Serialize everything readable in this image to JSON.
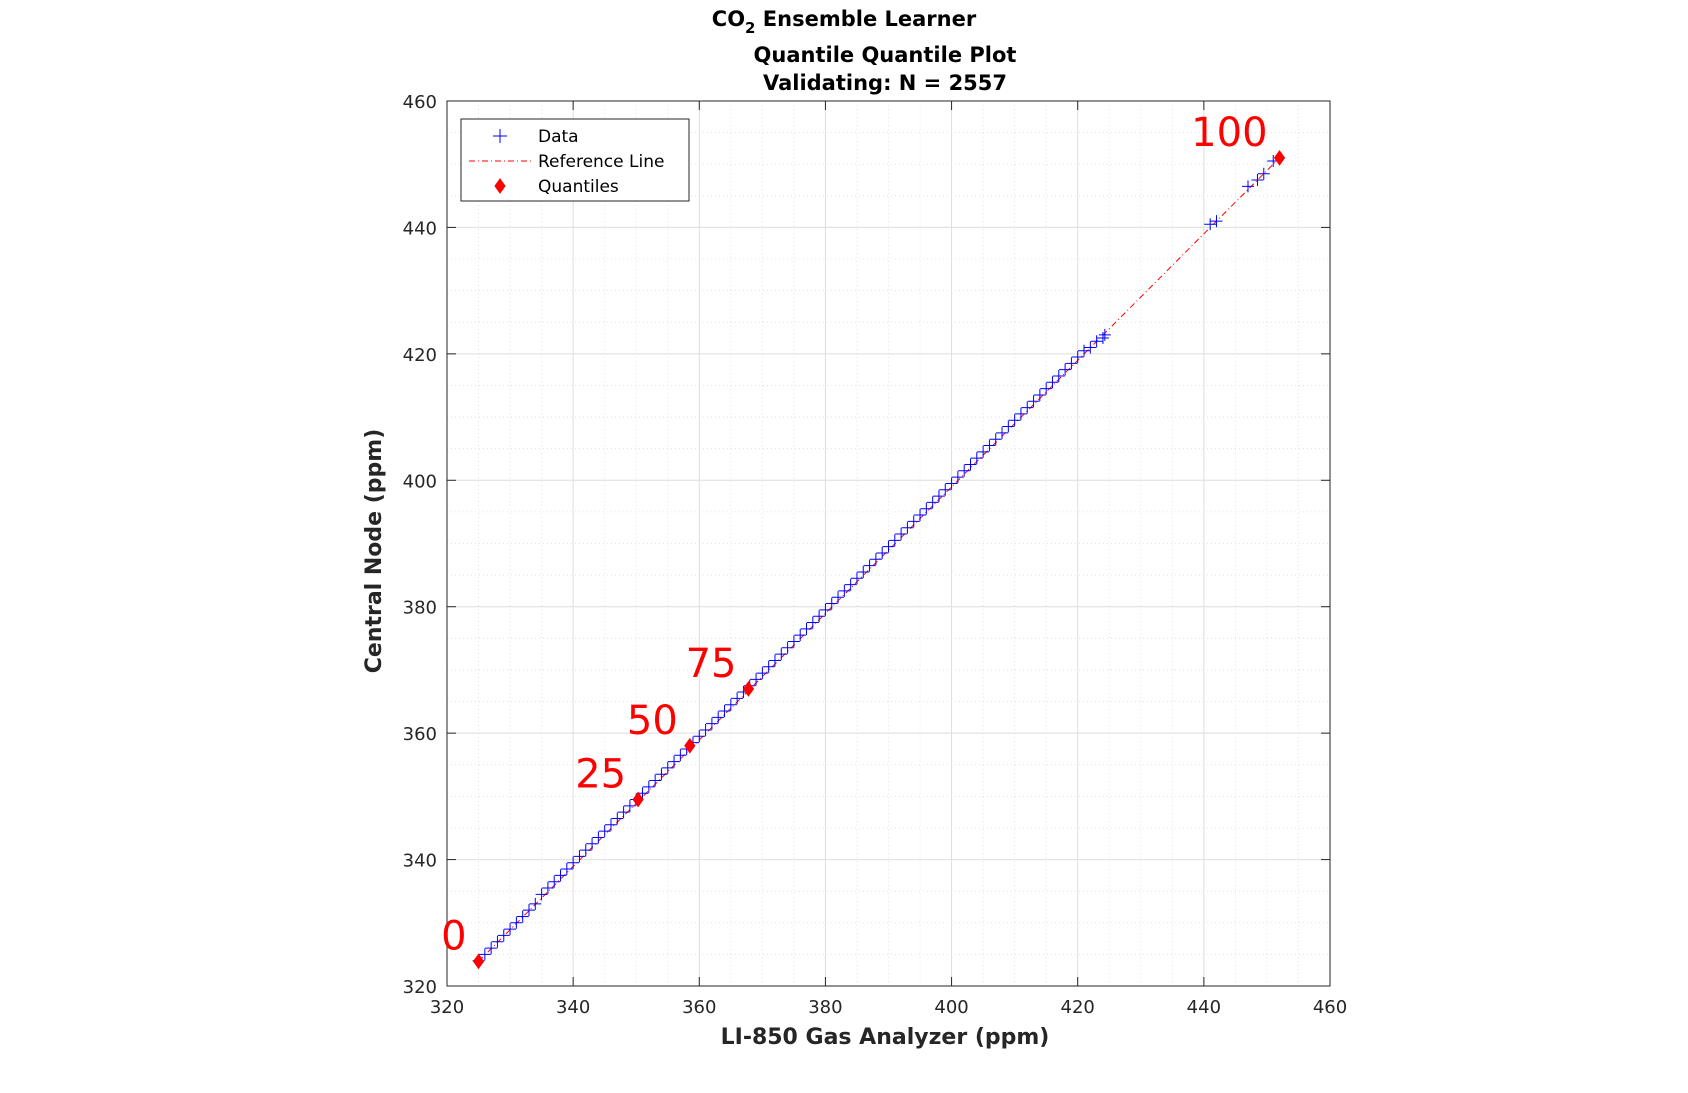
{
  "chart_data": {
    "type": "scatter",
    "title": {
      "line1_main": "CO",
      "line1_subscript": "2",
      "line1_rest": " Ensemble Learner",
      "line2": "Quantile Quantile Plot",
      "line3": "Validating: N = 2557"
    },
    "xlabel": "LI-850 Gas Analyzer (ppm)",
    "ylabel": "Central Node (ppm)",
    "xlim": [
      320,
      460
    ],
    "ylim": [
      320,
      460
    ],
    "x_ticks": [
      "320",
      "340",
      "360",
      "380",
      "400",
      "420",
      "440",
      "460"
    ],
    "y_ticks": [
      "320",
      "340",
      "360",
      "380",
      "400",
      "420",
      "440",
      "460"
    ],
    "grid": true,
    "minor_grid": true,
    "legend": {
      "placement": "top-left",
      "entries": [
        {
          "label": "Data",
          "marker": "plus",
          "color": "#0000ff"
        },
        {
          "label": "Reference Line",
          "marker": "dash-dot",
          "color": "#ff0000"
        },
        {
          "label": "Quantiles",
          "marker": "diamond",
          "color": "#ff0000"
        }
      ]
    },
    "series": [
      {
        "name": "Data",
        "marker": "plus",
        "color": "#0000ff",
        "points": [
          [
            325,
            324
          ],
          [
            326,
            325
          ],
          [
            327,
            326
          ],
          [
            328,
            327
          ],
          [
            329,
            328
          ],
          [
            330,
            329
          ],
          [
            331,
            330
          ],
          [
            332,
            331
          ],
          [
            333,
            332
          ],
          [
            334,
            333
          ],
          [
            335,
            334.5
          ],
          [
            336,
            335.5
          ],
          [
            337,
            336.5
          ],
          [
            338,
            337.5
          ],
          [
            339,
            338.5
          ],
          [
            340,
            339.5
          ],
          [
            341,
            340.5
          ],
          [
            342,
            341.5
          ],
          [
            343,
            342.5
          ],
          [
            344,
            343.5
          ],
          [
            345,
            344.5
          ],
          [
            346,
            345.5
          ],
          [
            347,
            346.5
          ],
          [
            348,
            347.5
          ],
          [
            349,
            348.5
          ],
          [
            350,
            349.5
          ],
          [
            351,
            350.5
          ],
          [
            352,
            351.5
          ],
          [
            353,
            352.5
          ],
          [
            354,
            353.5
          ],
          [
            355,
            354.5
          ],
          [
            356,
            355.5
          ],
          [
            357,
            356.5
          ],
          [
            358,
            357.5
          ],
          [
            359,
            358.5
          ],
          [
            360,
            359.5
          ],
          [
            361,
            360.5
          ],
          [
            362,
            361.5
          ],
          [
            363,
            362.5
          ],
          [
            364,
            363.5
          ],
          [
            365,
            364.5
          ],
          [
            366,
            365.5
          ],
          [
            367,
            366.5
          ],
          [
            368,
            367.5
          ],
          [
            369,
            368.5
          ],
          [
            370,
            369.5
          ],
          [
            371,
            370.5
          ],
          [
            372,
            371.5
          ],
          [
            373,
            372.5
          ],
          [
            374,
            373.5
          ],
          [
            375,
            374.5
          ],
          [
            376,
            375.5
          ],
          [
            377,
            376.5
          ],
          [
            378,
            377.5
          ],
          [
            379,
            378.5
          ],
          [
            380,
            379.5
          ],
          [
            381,
            380.5
          ],
          [
            382,
            381.5
          ],
          [
            383,
            382.5
          ],
          [
            384,
            383.5
          ],
          [
            385,
            384.5
          ],
          [
            386,
            385.5
          ],
          [
            387,
            386.5
          ],
          [
            388,
            387.5
          ],
          [
            389,
            388.5
          ],
          [
            390,
            389.5
          ],
          [
            391,
            390.5
          ],
          [
            392,
            391.5
          ],
          [
            393,
            392.5
          ],
          [
            394,
            393.5
          ],
          [
            395,
            394.5
          ],
          [
            396,
            395.5
          ],
          [
            397,
            396.5
          ],
          [
            398,
            397.5
          ],
          [
            399,
            398.5
          ],
          [
            400,
            399.5
          ],
          [
            401,
            400.5
          ],
          [
            402,
            401.5
          ],
          [
            403,
            402.5
          ],
          [
            404,
            403.5
          ],
          [
            405,
            404.5
          ],
          [
            406,
            405.5
          ],
          [
            407,
            406.5
          ],
          [
            408,
            407.5
          ],
          [
            409,
            408.5
          ],
          [
            410,
            409.5
          ],
          [
            411,
            410.5
          ],
          [
            412,
            411.5
          ],
          [
            413,
            412.5
          ],
          [
            414,
            413.5
          ],
          [
            415,
            414.5
          ],
          [
            416,
            415.5
          ],
          [
            417,
            416.5
          ],
          [
            418,
            417.5
          ],
          [
            419,
            418.5
          ],
          [
            420,
            419.5
          ],
          [
            421,
            420.5
          ],
          [
            422,
            421
          ],
          [
            423,
            422
          ],
          [
            424,
            422.5
          ],
          [
            424.3,
            423
          ],
          [
            441,
            440.5
          ],
          [
            442,
            441
          ],
          [
            447,
            446.5
          ],
          [
            448.5,
            447.5
          ],
          [
            449.5,
            448.5
          ],
          [
            451,
            450.5
          ]
        ]
      },
      {
        "name": "Reference Line",
        "style": "dash-dot",
        "color": "#ff0000",
        "x": [
          325,
          452
        ],
        "y": [
          323.9,
          451
        ]
      },
      {
        "name": "Quantiles",
        "marker": "diamond",
        "color": "#ff0000",
        "points": [
          {
            "label": "0",
            "x": 325,
            "y": 323.9
          },
          {
            "label": "25",
            "x": 350.3,
            "y": 349.5
          },
          {
            "label": "50",
            "x": 358.5,
            "y": 358
          },
          {
            "label": "75",
            "x": 367.8,
            "y": 367
          },
          {
            "label": "100",
            "x": 452,
            "y": 451
          }
        ]
      }
    ]
  }
}
